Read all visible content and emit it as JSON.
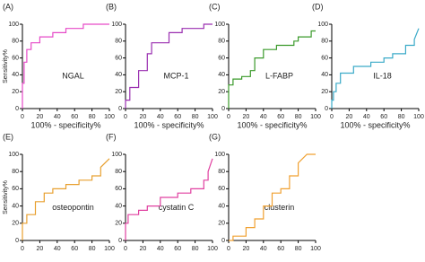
{
  "chart_data": [
    {
      "type": "line",
      "panel_label": "(A)",
      "annotation": "NGAL",
      "x_label": "100% - specificity%",
      "y_label": "Sensitivity%",
      "x": [
        0,
        0,
        2,
        2,
        5,
        5,
        10,
        10,
        20,
        20,
        35,
        35,
        50,
        50,
        70,
        70,
        100
      ],
      "series": [
        {
          "color": "#e64ac8",
          "values": [
            0,
            30,
            30,
            55,
            55,
            70,
            70,
            78,
            78,
            85,
            85,
            90,
            90,
            95,
            95,
            100,
            100
          ]
        }
      ],
      "xlim": [
        0,
        100
      ],
      "ylim": [
        0,
        100
      ],
      "xticks": [
        0,
        20,
        40,
        60,
        80,
        100
      ],
      "yticks": [
        0,
        20,
        40,
        60,
        80,
        100
      ]
    },
    {
      "type": "line",
      "panel_label": "(B)",
      "annotation": "MCP-1",
      "x_label": "100% - specificity%",
      "x": [
        0,
        0,
        5,
        5,
        15,
        15,
        25,
        25,
        30,
        30,
        50,
        50,
        65,
        65,
        90,
        90,
        100
      ],
      "series": [
        {
          "color": "#9a2fb0",
          "values": [
            0,
            10,
            10,
            25,
            25,
            45,
            45,
            65,
            65,
            78,
            78,
            90,
            90,
            95,
            95,
            100,
            100
          ]
        }
      ],
      "xlim": [
        0,
        100
      ],
      "ylim": [
        0,
        100
      ],
      "xticks": [
        0,
        20,
        40,
        60,
        80,
        100
      ],
      "yticks": [
        0,
        20,
        40,
        60,
        80,
        100
      ]
    },
    {
      "type": "line",
      "panel_label": "(C)",
      "annotation": "L-FABP",
      "x_label": "100% - specificity%",
      "x": [
        0,
        0,
        5,
        5,
        15,
        15,
        25,
        25,
        30,
        30,
        40,
        40,
        55,
        55,
        75,
        75,
        80,
        80,
        95,
        95,
        100
      ],
      "series": [
        {
          "color": "#3a9a2a",
          "values": [
            0,
            28,
            28,
            35,
            35,
            38,
            38,
            45,
            45,
            60,
            60,
            70,
            70,
            75,
            75,
            80,
            80,
            85,
            85,
            92,
            92
          ]
        }
      ],
      "xlim": [
        0,
        100
      ],
      "ylim": [
        0,
        100
      ],
      "xticks": [
        0,
        20,
        40,
        60,
        80,
        100
      ],
      "yticks": [
        0,
        20,
        40,
        60,
        80,
        100
      ]
    },
    {
      "type": "line",
      "panel_label": "(D)",
      "annotation": "IL-18",
      "x_label": "100% - specificity%",
      "x": [
        0,
        0,
        2,
        2,
        5,
        5,
        10,
        10,
        25,
        25,
        45,
        45,
        60,
        60,
        70,
        70,
        85,
        85,
        95,
        95,
        100
      ],
      "series": [
        {
          "color": "#3aaac8",
          "values": [
            0,
            10,
            10,
            20,
            20,
            30,
            30,
            42,
            42,
            50,
            50,
            55,
            55,
            60,
            60,
            65,
            65,
            75,
            75,
            82,
            95
          ]
        }
      ],
      "xlim": [
        0,
        100
      ],
      "ylim": [
        0,
        100
      ],
      "xticks": [
        0,
        20,
        40,
        60,
        80,
        100
      ],
      "yticks": [
        0,
        20,
        40,
        60,
        80,
        100
      ]
    },
    {
      "type": "line",
      "panel_label": "(E)",
      "annotation": "osteopontin",
      "y_label": "Sensitivity%",
      "x": [
        0,
        0,
        5,
        5,
        15,
        15,
        25,
        25,
        35,
        35,
        50,
        50,
        65,
        65,
        80,
        80,
        90,
        90,
        100
      ],
      "series": [
        {
          "color": "#e8a030",
          "values": [
            0,
            20,
            20,
            30,
            30,
            45,
            45,
            55,
            55,
            60,
            60,
            65,
            65,
            70,
            70,
            75,
            75,
            85,
            95
          ]
        }
      ],
      "xlim": [
        0,
        100
      ],
      "ylim": [
        0,
        100
      ],
      "xticks": [
        0,
        20,
        40,
        60,
        80,
        100
      ],
      "yticks": [
        0,
        20,
        40,
        60,
        80,
        100
      ]
    },
    {
      "type": "line",
      "panel_label": "(F)",
      "annotation": "cystatin C",
      "x": [
        0,
        0,
        3,
        3,
        15,
        15,
        25,
        25,
        40,
        40,
        60,
        60,
        75,
        75,
        90,
        90,
        95,
        95,
        100
      ],
      "series": [
        {
          "color": "#e040a0",
          "values": [
            0,
            20,
            20,
            30,
            30,
            35,
            35,
            40,
            40,
            50,
            50,
            55,
            55,
            60,
            60,
            70,
            70,
            80,
            95
          ]
        }
      ],
      "xlim": [
        0,
        100
      ],
      "ylim": [
        0,
        100
      ],
      "xticks": [
        0,
        20,
        40,
        60,
        80,
        100
      ],
      "yticks": [
        0,
        20,
        40,
        60,
        80,
        100
      ]
    },
    {
      "type": "line",
      "panel_label": "(G)",
      "annotation": "clusterin",
      "x": [
        0,
        5,
        5,
        20,
        20,
        30,
        30,
        40,
        40,
        50,
        50,
        60,
        60,
        70,
        70,
        80,
        80,
        90,
        100
      ],
      "series": [
        {
          "color": "#f0a030",
          "values": [
            0,
            0,
            5,
            5,
            15,
            15,
            25,
            25,
            40,
            40,
            55,
            55,
            60,
            60,
            75,
            75,
            90,
            100,
            100
          ]
        }
      ],
      "xlim": [
        0,
        100
      ],
      "ylim": [
        0,
        100
      ],
      "xticks": [
        0,
        20,
        40,
        60,
        80,
        100
      ],
      "yticks": [
        0,
        20,
        40,
        60,
        80,
        100
      ]
    }
  ]
}
